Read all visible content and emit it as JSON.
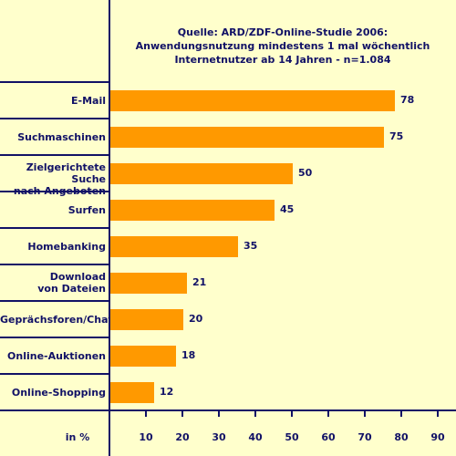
{
  "chart_data": {
    "type": "bar",
    "orientation": "horizontal",
    "title_lines": [
      "Quelle: ARD/ZDF-Online-Studie 2006:",
      "Anwendungsnutzung mindestens 1 mal wöchentlich",
      "Internetnutzer ab 14 Jahren - n=1.084"
    ],
    "categories": [
      [
        "E-Mail"
      ],
      [
        "Suchmaschinen"
      ],
      [
        "Zielgerichtete Suche",
        "nach Angeboten"
      ],
      [
        "Surfen"
      ],
      [
        "Homebanking"
      ],
      [
        "Download",
        "von Dateien"
      ],
      [
        "Geprächsforen/Chat"
      ],
      [
        "Online-Auktionen"
      ],
      [
        "Online-Shopping"
      ]
    ],
    "values": [
      78,
      75,
      50,
      45,
      35,
      21,
      20,
      18,
      12
    ],
    "xlabel": "in %",
    "xlim": [
      0,
      90
    ],
    "xticks": [
      10,
      20,
      30,
      40,
      50,
      60,
      70,
      80,
      90
    ],
    "grid": "horizontal separators only",
    "colors": {
      "background": "#FFFFCC",
      "bar": "#FF9900",
      "axis": "#111166",
      "text": "#111166"
    }
  }
}
